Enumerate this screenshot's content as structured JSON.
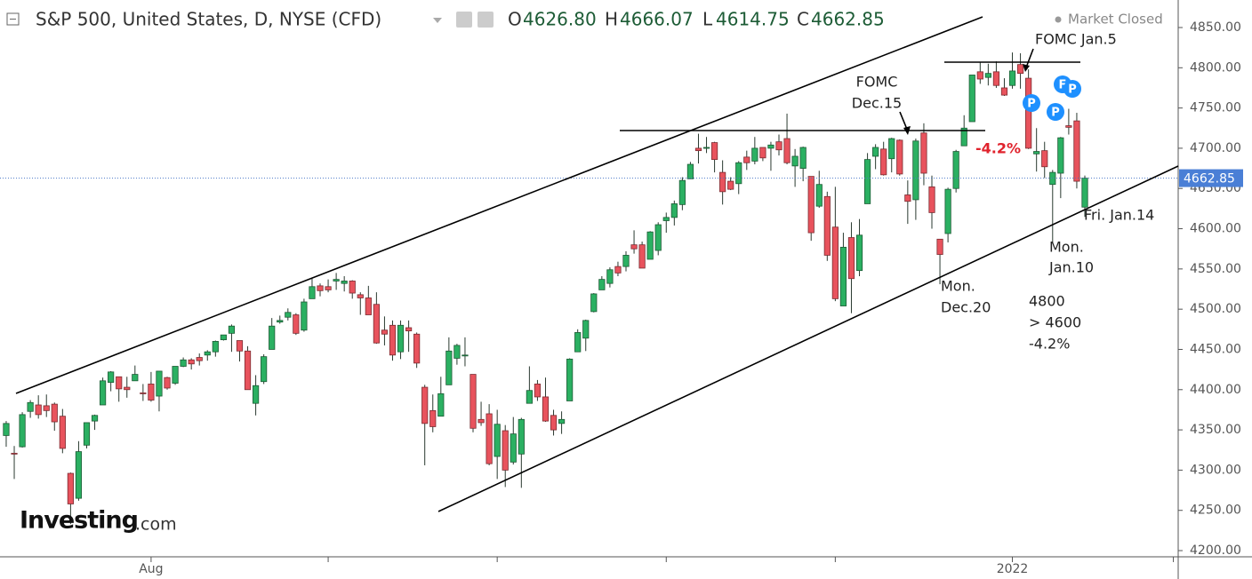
{
  "header": {
    "symbol": "S&P 500, United States, D, NYSE (CFD)",
    "ohlc": [
      {
        "key": "O",
        "value": "4626.80"
      },
      {
        "key": "H",
        "value": "4666.07"
      },
      {
        "key": "L",
        "value": "4614.75"
      },
      {
        "key": "C",
        "value": "4662.85"
      }
    ],
    "status": "Market Closed"
  },
  "logo": {
    "brand": "Investing",
    "suffix": ".com"
  },
  "chart_data": {
    "type": "candlestick",
    "up_color": "#2bb062",
    "down_color": "#e8535d",
    "up_border": "#1c5a34",
    "down_border": "#7b2b30",
    "wick_color": "#2a3a30",
    "xlim": [
      -0.77,
      145.6
    ],
    "ylim": [
      4192.3,
      4884.2
    ],
    "grid": false,
    "xticks": [
      {
        "value": 18,
        "label": "Aug"
      },
      {
        "value": 40,
        "label": null
      },
      {
        "value": 61,
        "label": null
      },
      {
        "value": 82,
        "label": null
      },
      {
        "value": 103,
        "label": null
      },
      {
        "value": 125,
        "label": "2022"
      },
      {
        "value": 145,
        "label": null
      }
    ],
    "yticks": [
      {
        "value": 4200,
        "label": "4200.00"
      },
      {
        "value": 4250,
        "label": "4250.00"
      },
      {
        "value": 4300,
        "label": "4300.00"
      },
      {
        "value": 4350,
        "label": "4350.00"
      },
      {
        "value": 4400,
        "label": "4400.00"
      },
      {
        "value": 4450,
        "label": "4450.00"
      },
      {
        "value": 4500,
        "label": "4500.00"
      },
      {
        "value": 4550,
        "label": "4550.00"
      },
      {
        "value": 4600,
        "label": "4600.00"
      },
      {
        "value": 4650,
        "label": "4650.00"
      },
      {
        "value": 4700,
        "label": "4700.00"
      },
      {
        "value": 4750,
        "label": "4750.00"
      },
      {
        "value": 4800,
        "label": "4800.00"
      },
      {
        "value": 4850,
        "label": "4850.00"
      }
    ],
    "ohlc": [
      [
        4343,
        4361,
        4329,
        4358
      ],
      [
        4321,
        4330,
        4289,
        4320
      ],
      [
        4329,
        4372,
        4328,
        4369
      ],
      [
        4373,
        4387,
        4365,
        4384
      ],
      [
        4381,
        4393,
        4364,
        4369
      ],
      [
        4380,
        4394,
        4366,
        4374
      ],
      [
        4382,
        4384,
        4349,
        4360
      ],
      [
        4367,
        4376,
        4321,
        4327
      ],
      [
        4296,
        4297,
        4233,
        4258
      ],
      [
        4265,
        4336,
        4262,
        4323
      ],
      [
        4331,
        4359,
        4327,
        4359
      ],
      [
        4361,
        4369,
        4350,
        4368
      ],
      [
        4381,
        4415,
        4381,
        4411
      ],
      [
        4409,
        4423,
        4398,
        4422
      ],
      [
        4416,
        4416,
        4385,
        4401
      ],
      [
        4403,
        4416,
        4390,
        4400
      ],
      [
        4411,
        4430,
        4411,
        4419
      ],
      [
        4396,
        4407,
        4386,
        4395
      ],
      [
        4407,
        4422,
        4385,
        4387
      ],
      [
        4392,
        4423,
        4373,
        4423
      ],
      [
        4415,
        4416,
        4400,
        4402
      ],
      [
        4408,
        4429,
        4406,
        4429
      ],
      [
        4429,
        4440,
        4428,
        4437
      ],
      [
        4437,
        4439,
        4425,
        4432
      ],
      [
        4440,
        4445,
        4430,
        4436
      ],
      [
        4443,
        4449,
        4436,
        4447
      ],
      [
        4447,
        4461,
        4441,
        4460
      ],
      [
        4462,
        4468,
        4461,
        4468
      ],
      [
        4470,
        4481,
        4447,
        4479
      ],
      [
        4461,
        4461,
        4435,
        4448
      ],
      [
        4448,
        4454,
        4400,
        4400
      ],
      [
        4383,
        4418,
        4368,
        4405
      ],
      [
        4410,
        4444,
        4407,
        4441
      ],
      [
        4450,
        4489,
        4450,
        4479
      ],
      [
        4484,
        4492,
        4482,
        4486
      ],
      [
        4490,
        4501,
        4486,
        4496
      ],
      [
        4493,
        4495,
        4468,
        4470
      ],
      [
        4474,
        4513,
        4472,
        4509
      ],
      [
        4513,
        4538,
        4513,
        4528
      ],
      [
        4529,
        4532,
        4516,
        4523
      ],
      [
        4528,
        4537,
        4521,
        4524
      ],
      [
        4535,
        4545,
        4524,
        4537
      ],
      [
        4532,
        4541,
        4522,
        4535
      ],
      [
        4535,
        4536,
        4513,
        4520
      ],
      [
        4518,
        4521,
        4493,
        4514
      ],
      [
        4514,
        4529,
        4493,
        4493
      ],
      [
        4506,
        4521,
        4457,
        4458
      ],
      [
        4474,
        4491,
        4455,
        4469
      ],
      [
        4480,
        4486,
        4436,
        4443
      ],
      [
        4447,
        4486,
        4438,
        4480
      ],
      [
        4477,
        4486,
        4447,
        4473
      ],
      [
        4469,
        4471,
        4427,
        4433
      ],
      [
        4403,
        4406,
        4306,
        4358
      ],
      [
        4374,
        4394,
        4347,
        4354
      ],
      [
        4367,
        4416,
        4367,
        4395
      ],
      [
        4406,
        4465,
        4406,
        4448
      ],
      [
        4439,
        4457,
        4431,
        4455
      ],
      [
        4443,
        4465,
        4429,
        4443
      ],
      [
        4419,
        4419,
        4347,
        4352
      ],
      [
        4363,
        4385,
        4355,
        4359
      ],
      [
        4370,
        4382,
        4306,
        4308
      ],
      [
        4317,
        4375,
        4289,
        4357
      ],
      [
        4349,
        4356,
        4279,
        4300
      ],
      [
        4310,
        4366,
        4307,
        4345
      ],
      [
        4320,
        4365,
        4278,
        4363
      ],
      [
        4383,
        4429,
        4383,
        4399
      ],
      [
        4407,
        4412,
        4386,
        4391
      ],
      [
        4391,
        4415,
        4360,
        4361
      ],
      [
        4368,
        4375,
        4343,
        4350
      ],
      [
        4358,
        4373,
        4345,
        4363
      ],
      [
        4386,
        4439,
        4386,
        4438
      ],
      [
        4447,
        4475,
        4447,
        4471
      ],
      [
        4464,
        4487,
        4448,
        4486
      ],
      [
        4497,
        4520,
        4496,
        4519
      ],
      [
        4524,
        4541,
        4524,
        4537
      ],
      [
        4532,
        4552,
        4527,
        4549
      ],
      [
        4553,
        4559,
        4541,
        4545
      ],
      [
        4553,
        4572,
        4547,
        4567
      ],
      [
        4580,
        4598,
        4569,
        4575
      ],
      [
        4580,
        4584,
        4551,
        4551
      ],
      [
        4562,
        4597,
        4562,
        4596
      ],
      [
        4573,
        4608,
        4567,
        4605
      ],
      [
        4610,
        4620,
        4595,
        4614
      ],
      [
        4614,
        4635,
        4604,
        4631
      ],
      [
        4630,
        4664,
        4623,
        4660
      ],
      [
        4662,
        4683,
        4662,
        4680
      ],
      [
        4700,
        4718,
        4681,
        4697
      ],
      [
        4701,
        4714,
        4694,
        4701
      ],
      [
        4707,
        4708,
        4670,
        4686
      ],
      [
        4670,
        4685,
        4630,
        4646
      ],
      [
        4659,
        4664,
        4648,
        4649
      ],
      [
        4656,
        4684,
        4643,
        4682
      ],
      [
        4689,
        4697,
        4673,
        4682
      ],
      [
        4684,
        4714,
        4680,
        4700
      ],
      [
        4701,
        4701,
        4684,
        4688
      ],
      [
        4700,
        4708,
        4672,
        4704
      ],
      [
        4708,
        4717,
        4691,
        4698
      ],
      [
        4712,
        4743,
        4680,
        4682
      ],
      [
        4678,
        4699,
        4652,
        4690
      ],
      [
        4675,
        4702,
        4659,
        4701
      ],
      [
        4665,
        4665,
        4585,
        4595
      ],
      [
        4628,
        4672,
        4626,
        4655
      ],
      [
        4640,
        4646,
        4560,
        4567
      ],
      [
        4602,
        4652,
        4510,
        4513
      ],
      [
        4504,
        4595,
        4504,
        4577
      ],
      [
        4589,
        4608,
        4495,
        4538
      ],
      [
        4548,
        4612,
        4541,
        4592
      ],
      [
        4631,
        4694,
        4631,
        4686
      ],
      [
        4690,
        4705,
        4674,
        4701
      ],
      [
        4699,
        4708,
        4666,
        4667
      ],
      [
        4687,
        4713,
        4670,
        4712
      ],
      [
        4710,
        4711,
        4666,
        4668
      ],
      [
        4642,
        4660,
        4606,
        4634
      ],
      [
        4636,
        4712,
        4611,
        4709
      ],
      [
        4719,
        4731,
        4654,
        4669
      ],
      [
        4652,
        4666,
        4600,
        4620
      ],
      [
        4587,
        4587,
        4531,
        4568
      ],
      [
        4594,
        4651,
        4583,
        4649
      ],
      [
        4650,
        4698,
        4645,
        4696
      ],
      [
        4703,
        4741,
        4703,
        4725
      ],
      [
        4733,
        4791,
        4733,
        4791
      ],
      [
        4795,
        4807,
        4780,
        4786
      ],
      [
        4788,
        4805,
        4778,
        4793
      ],
      [
        4795,
        4808,
        4775,
        4778
      ],
      [
        4775,
        4787,
        4765,
        4766
      ],
      [
        4778,
        4819,
        4774,
        4796
      ],
      [
        4804,
        4818,
        4774,
        4793
      ],
      [
        4787,
        4798,
        4699,
        4700
      ],
      [
        4693,
        4725,
        4671,
        4696
      ],
      [
        4697,
        4708,
        4663,
        4677
      ],
      [
        4655,
        4673,
        4582,
        4670
      ],
      [
        4669,
        4714,
        4638,
        4713
      ],
      [
        4728,
        4749,
        4717,
        4726
      ],
      [
        4734,
        4744,
        4650,
        4659
      ],
      [
        4626.8,
        4666.07,
        4614.75,
        4662.85
      ]
    ],
    "annotations": {
      "fomc_dec": [
        "FOMC",
        "Dec.15"
      ],
      "fomc_jan": "FOMC Jan.5",
      "drop": "-4.2%",
      "mon_dec": [
        "Mon.",
        "Dec.20"
      ],
      "mon_jan": [
        "Mon.",
        "Jan.10"
      ],
      "fri_jan": "Fri. Jan.14",
      "note": [
        "4800",
        "> 4600",
        "-4.2%"
      ],
      "markers": [
        "P",
        "P",
        "F",
        "P"
      ]
    }
  }
}
